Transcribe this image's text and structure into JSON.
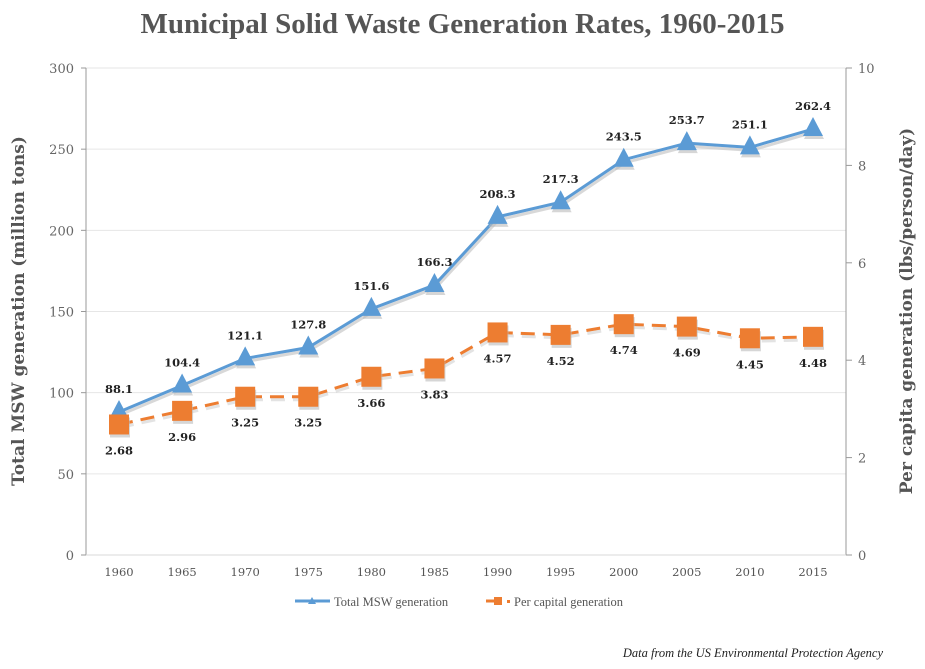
{
  "chart_data": {
    "type": "line",
    "title": "Municipal Solid Waste Generation Rates, 1960-2015",
    "categories": [
      "1960",
      "1965",
      "1970",
      "1975",
      "1980",
      "1985",
      "1990",
      "1995",
      "2000",
      "2005",
      "2010",
      "2015"
    ],
    "series": [
      {
        "name": "Total MSW generation",
        "axis": "left",
        "color": "#5B9BD5",
        "marker": "triangle",
        "line_style": "solid",
        "values": [
          88.1,
          104.4,
          121.1,
          127.8,
          151.6,
          166.3,
          208.3,
          217.3,
          243.5,
          253.7,
          251.1,
          262.4
        ],
        "labels": [
          "88.1",
          "104.4",
          "121.1",
          "127.8",
          "151.6",
          "166.3",
          "208.3",
          "217.3",
          "243.5",
          "253.7",
          "251.1",
          "262.4"
        ]
      },
      {
        "name": "Per capital generation",
        "axis": "right",
        "color": "#ED7D31",
        "marker": "square",
        "line_style": "dashed",
        "values": [
          2.68,
          2.96,
          3.25,
          3.25,
          3.66,
          3.83,
          4.57,
          4.52,
          4.74,
          4.69,
          4.45,
          4.48
        ],
        "labels": [
          "2.68",
          "2.96",
          "3.25",
          "3.25",
          "3.66",
          "3.83",
          "4.57",
          "4.52",
          "4.74",
          "4.69",
          "4.45",
          "4.48"
        ]
      }
    ],
    "ylabel": "Total MSW generation (million tons)",
    "ylim": [
      0,
      300
    ],
    "yticks": [
      "0",
      "50",
      "100",
      "150",
      "200",
      "250",
      "300"
    ],
    "y2label": "Per capita generation (lbs/person/day)",
    "y2lim": [
      0,
      10
    ],
    "y2ticks": [
      "0",
      "2",
      "4",
      "6",
      "8",
      "10"
    ],
    "xlabel": "",
    "grid": true,
    "legend_position": "bottom",
    "source_note": "Data from the US Environmental Protection Agency"
  }
}
